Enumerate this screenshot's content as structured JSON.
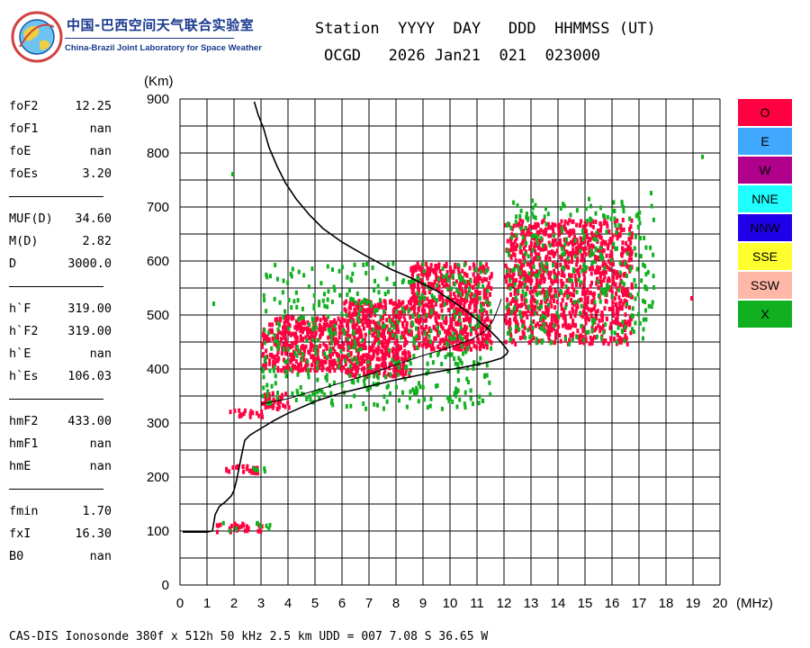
{
  "branding": {
    "name_cn": "中国-巴西空间天气联合实验室",
    "name_en": "China-Brazil Joint Laboratory for Space Weather"
  },
  "header": {
    "line1": "Station  YYYY  DAY   DDD  HHMMSS (UT)",
    "line2": "OCGD   2026 Jan21  021  023000"
  },
  "parameters": [
    {
      "label": "foF2",
      "value": "12.25"
    },
    {
      "label": "foF1",
      "value": "nan"
    },
    {
      "label": "foE",
      "value": "nan"
    },
    {
      "label": "foEs",
      "value": "3.20"
    },
    {
      "sep": true
    },
    {
      "label": "MUF(D)",
      "value": "34.60"
    },
    {
      "label": "M(D)",
      "value": "2.82"
    },
    {
      "label": "D",
      "value": "3000.0"
    },
    {
      "sep": true
    },
    {
      "label": "h`F",
      "value": "319.00"
    },
    {
      "label": "h`F2",
      "value": "319.00"
    },
    {
      "label": "h`E",
      "value": "nan"
    },
    {
      "label": "h`Es",
      "value": "106.03"
    },
    {
      "sep": true
    },
    {
      "label": "hmF2",
      "value": "433.00"
    },
    {
      "label": "hmF1",
      "value": "nan"
    },
    {
      "label": "hmE",
      "value": "nan"
    },
    {
      "sep": true
    },
    {
      "label": "fmin",
      "value": "1.70"
    },
    {
      "label": "fxI",
      "value": "16.30"
    },
    {
      "label": "B0",
      "value": "nan"
    }
  ],
  "legend": [
    {
      "label": "O",
      "color": "#ff0040"
    },
    {
      "label": "E",
      "color": "#40a8ff"
    },
    {
      "label": "W",
      "color": "#b0008c"
    },
    {
      "label": "NNE",
      "color": "#20ffff"
    },
    {
      "label": "NNW",
      "color": "#2000e8"
    },
    {
      "label": "SSE",
      "color": "#ffff30"
    },
    {
      "label": "SSW",
      "color": "#ffb8a8"
    },
    {
      "label": "X",
      "color": "#10b020"
    }
  ],
  "footer": "CAS-DIS Ionosonde 380f x 512h 50 kHz 2.5 km UDD = 007 7.08 S 36.65 W",
  "chart_data": {
    "type": "scatter",
    "title": "",
    "xlabel": "(MHz)",
    "ylabel": "(Km)",
    "xlim": [
      0,
      20
    ],
    "ylim": [
      0,
      900
    ],
    "x_ticks": [
      "0",
      "1",
      "2",
      "3",
      "4",
      "5",
      "6",
      "7",
      "8",
      "9",
      "10",
      "11",
      "12",
      "13",
      "14",
      "15",
      "16",
      "17",
      "18",
      "19",
      "20"
    ],
    "y_ticks": [
      "0",
      "100",
      "200",
      "300",
      "400",
      "500",
      "600",
      "700",
      "800",
      "900"
    ],
    "grid": true,
    "echo_clusters": [
      {
        "name": "O",
        "mode": "O",
        "f_range": [
          1.3,
          3.0
        ],
        "h_range": [
          102,
          118
        ],
        "density": 0.6
      },
      {
        "name": "O",
        "mode": "O",
        "f_range": [
          1.5,
          3.0
        ],
        "h_range": [
          210,
          225
        ],
        "density": 0.6
      },
      {
        "name": "O",
        "mode": "O",
        "f_range": [
          1.7,
          3.0
        ],
        "h_range": [
          315,
          328
        ],
        "density": 0.6
      },
      {
        "name": "O",
        "mode": "O",
        "f_range": [
          3.0,
          4.0
        ],
        "h_range": [
          330,
          360
        ],
        "density": 0.7
      },
      {
        "name": "O",
        "mode": "O",
        "f_range": [
          3.0,
          6.0
        ],
        "h_range": [
          400,
          500
        ],
        "density": 0.75
      },
      {
        "name": "O",
        "mode": "O",
        "f_range": [
          6.0,
          8.5
        ],
        "h_range": [
          390,
          530
        ],
        "density": 0.8
      },
      {
        "name": "O",
        "mode": "O",
        "f_range": [
          8.5,
          11.5
        ],
        "h_range": [
          440,
          600
        ],
        "density": 0.7
      },
      {
        "name": "O",
        "mode": "O",
        "f_range": [
          12.0,
          16.7
        ],
        "h_range": [
          450,
          680
        ],
        "density": 0.55
      },
      {
        "name": "X",
        "mode": "X",
        "f_range": [
          1.5,
          3.3
        ],
        "h_range": [
          104,
          120
        ],
        "density": 0.2
      },
      {
        "name": "X",
        "mode": "X",
        "f_range": [
          2.5,
          3.3
        ],
        "h_range": [
          210,
          222
        ],
        "density": 0.3
      },
      {
        "name": "X",
        "mode": "X",
        "f_range": [
          3.0,
          11.5
        ],
        "h_range": [
          330,
          600
        ],
        "density": 0.12
      },
      {
        "name": "X",
        "mode": "X",
        "f_range": [
          12.0,
          17.5
        ],
        "h_range": [
          450,
          720
        ],
        "density": 0.12
      }
    ],
    "profile_curve": [
      [
        0.1,
        98
      ],
      [
        0.5,
        98
      ],
      [
        1.0,
        98
      ],
      [
        1.2,
        100
      ],
      [
        1.25,
        115
      ],
      [
        1.3,
        130
      ],
      [
        1.45,
        145
      ],
      [
        1.7,
        155
      ],
      [
        1.9,
        165
      ],
      [
        2.0,
        175
      ],
      [
        2.1,
        195
      ],
      [
        2.2,
        220
      ],
      [
        2.3,
        245
      ],
      [
        2.4,
        268
      ],
      [
        2.6,
        278
      ],
      [
        3.0,
        290
      ],
      [
        3.5,
        305
      ],
      [
        4.0,
        318
      ],
      [
        5.0,
        340
      ],
      [
        6.0,
        356
      ],
      [
        7.0,
        368
      ],
      [
        8.0,
        380
      ],
      [
        9.0,
        390
      ],
      [
        10.0,
        399
      ],
      [
        11.0,
        408
      ],
      [
        11.5,
        414
      ],
      [
        11.9,
        420
      ],
      [
        12.1,
        428
      ],
      [
        12.15,
        433
      ],
      [
        12.05,
        440
      ],
      [
        11.8,
        455
      ],
      [
        11.4,
        475
      ],
      [
        10.8,
        500
      ],
      [
        10.2,
        522
      ],
      [
        9.5,
        545
      ],
      [
        8.5,
        570
      ],
      [
        7.8,
        585
      ],
      [
        6.8,
        612
      ],
      [
        6.0,
        635
      ],
      [
        5.3,
        660
      ],
      [
        4.8,
        685
      ],
      [
        4.3,
        715
      ],
      [
        3.9,
        745
      ],
      [
        3.6,
        775
      ],
      [
        3.3,
        810
      ],
      [
        3.1,
        845
      ],
      [
        2.9,
        870
      ],
      [
        2.75,
        895
      ]
    ],
    "trace_curve": [
      [
        3.0,
        335
      ],
      [
        4.0,
        345
      ],
      [
        5.0,
        360
      ],
      [
        6.0,
        375
      ],
      [
        7.0,
        390
      ],
      [
        8.0,
        408
      ],
      [
        9.0,
        425
      ],
      [
        10.0,
        440
      ],
      [
        10.8,
        455
      ],
      [
        11.3,
        470
      ],
      [
        11.6,
        490
      ],
      [
        11.8,
        515
      ],
      [
        11.9,
        530
      ]
    ],
    "isolated_points": [
      {
        "f": 1.9,
        "h": 765,
        "mode": "X"
      },
      {
        "f": 19.3,
        "h": 797,
        "mode": "X"
      },
      {
        "f": 17.4,
        "h": 730,
        "mode": "X"
      },
      {
        "f": 1.2,
        "h": 525,
        "mode": "X"
      },
      {
        "f": 18.9,
        "h": 535,
        "mode": "O"
      },
      {
        "f": 17.5,
        "h": 555,
        "mode": "X"
      }
    ]
  }
}
